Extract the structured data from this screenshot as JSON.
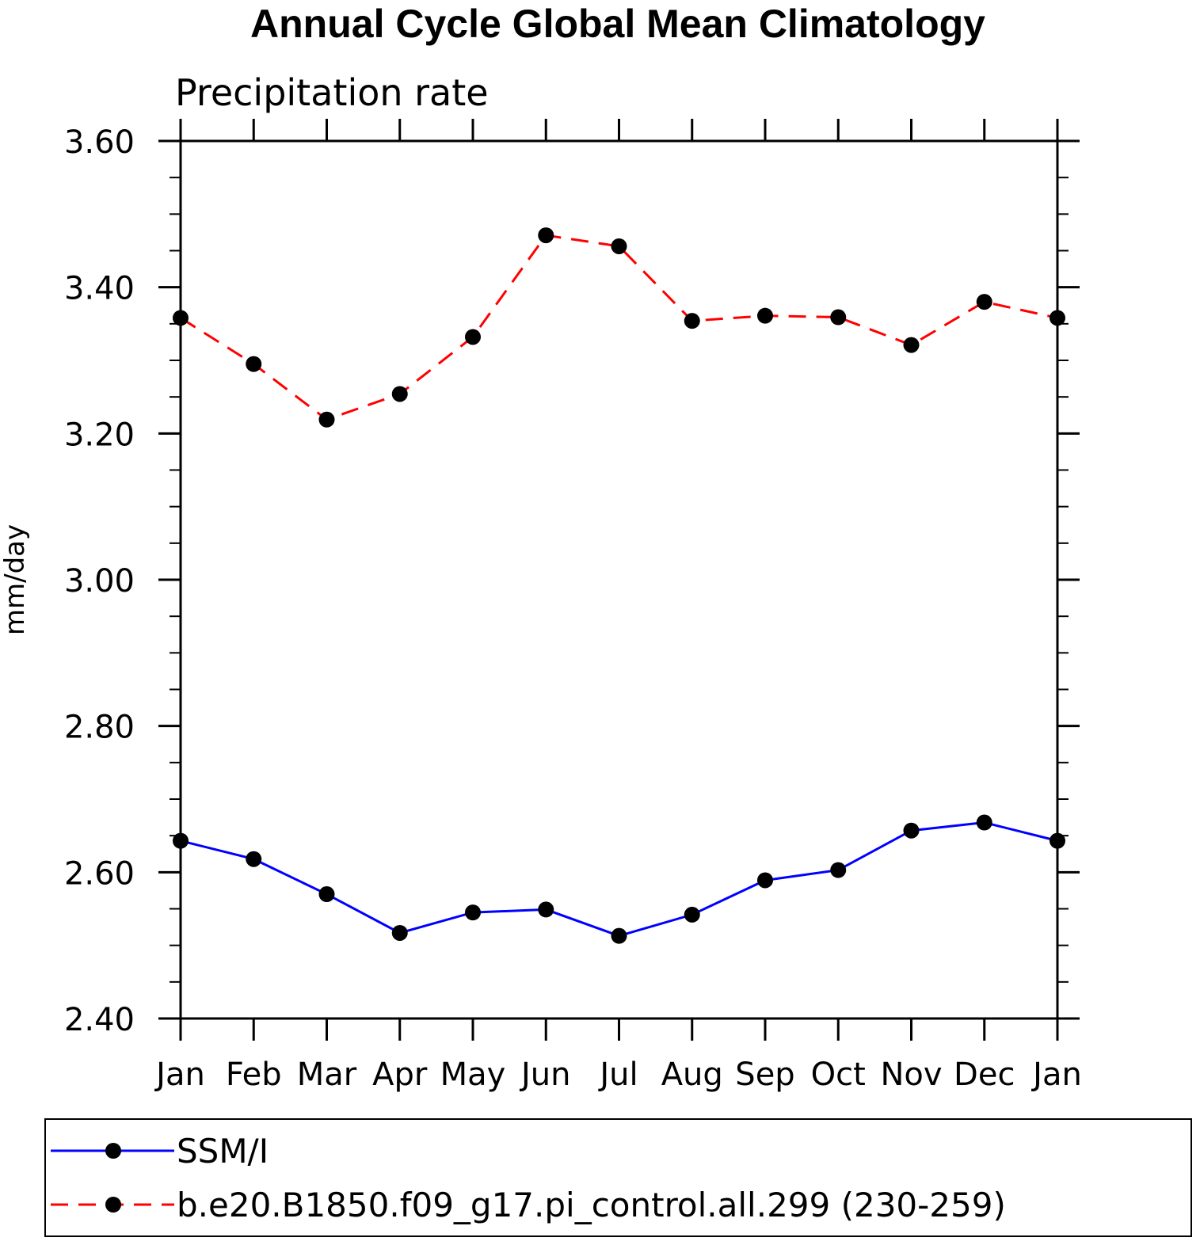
{
  "chart_data": {
    "type": "line",
    "title": "Annual Cycle Global Mean Climatology",
    "subtitle": "Precipitation rate",
    "xlabel": "",
    "ylabel": "mm/day",
    "ylim": [
      2.4,
      3.6
    ],
    "yticks": [
      "2.40",
      "2.60",
      "2.80",
      "3.00",
      "3.20",
      "3.40",
      "3.60"
    ],
    "categories": [
      "Jan",
      "Feb",
      "Mar",
      "Apr",
      "May",
      "Jun",
      "Jul",
      "Aug",
      "Sep",
      "Oct",
      "Nov",
      "Dec",
      "Jan"
    ],
    "series": [
      {
        "name": "SSM/I",
        "color": "#0000ff",
        "dash": "solid",
        "values": [
          2.643,
          2.618,
          2.57,
          2.517,
          2.545,
          2.549,
          2.513,
          2.542,
          2.589,
          2.603,
          2.657,
          2.668,
          2.643
        ]
      },
      {
        "name": "b.e20.B1850.f09_g17.pi_control.all.299 (230-259)",
        "color": "#ff0000",
        "dash": "dashed",
        "values": [
          3.358,
          3.295,
          3.219,
          3.254,
          3.332,
          3.471,
          3.456,
          3.354,
          3.361,
          3.359,
          3.321,
          3.38,
          3.358
        ]
      }
    ],
    "legend": "bottom"
  }
}
